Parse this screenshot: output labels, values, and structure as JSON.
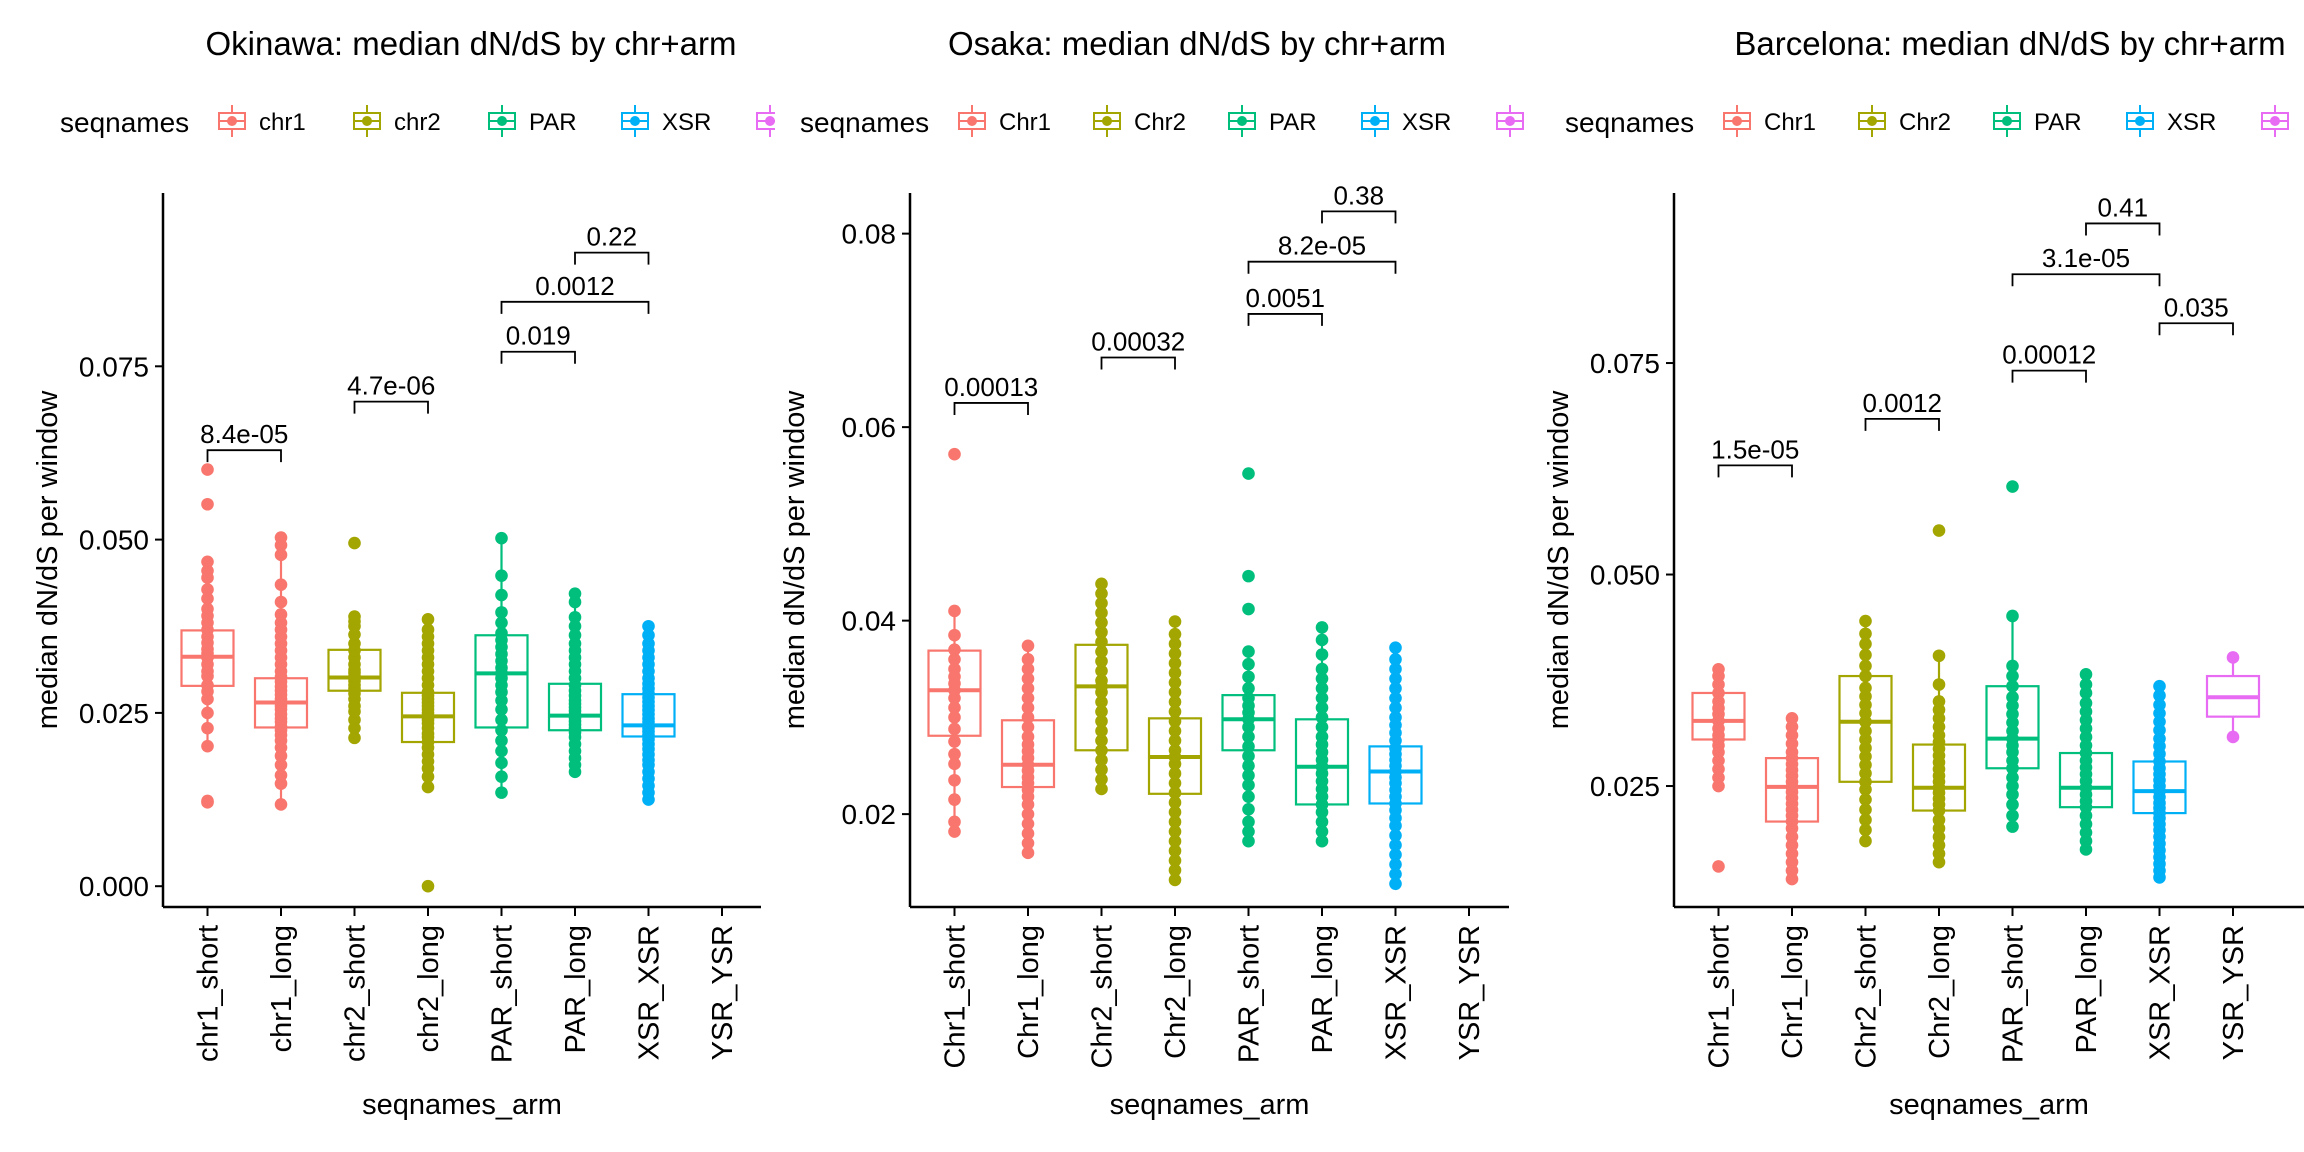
{
  "colors": {
    "chr1": "#F8766D",
    "chr2": "#A3A500",
    "PAR": "#00BF7D",
    "XSR": "#00B0F6",
    "YSR": "#E76BF3"
  },
  "chart_data": [
    {
      "type": "box",
      "title": "Okinawa: median dN/dS by chr+arm",
      "xlabel": "seqnames_arm",
      "ylabel": "median dN/dS per window",
      "legend_title": "seqnames",
      "legend": [
        "chr1",
        "chr2",
        "PAR",
        "XSR"
      ],
      "legend_keys": [
        "chr1",
        "chr2",
        "PAR",
        "XSR",
        "YSR"
      ],
      "yticks": [
        0.0,
        0.025,
        0.05,
        0.075
      ],
      "ytick_labels": [
        "0.000",
        "0.025",
        "0.050",
        "0.075"
      ],
      "ylim": [
        -0.003,
        0.1
      ],
      "categories": [
        "chr1_short",
        "chr1_long",
        "chr2_short",
        "chr2_long",
        "PAR_short",
        "PAR_long",
        "XSR_XSR",
        "YSR_YSR"
      ],
      "boxes": [
        {
          "group": "chr1",
          "q1": 0.0289,
          "median": 0.0331,
          "q3": 0.0369,
          "wlo": 0.0202,
          "whi": 0.0468,
          "points": [
            0.0121,
            0.0123,
            0.0202,
            0.0228,
            0.025,
            0.027,
            0.0281,
            0.029,
            0.0303,
            0.031,
            0.032,
            0.033,
            0.0336,
            0.0342,
            0.0351,
            0.036,
            0.037,
            0.038,
            0.039,
            0.04,
            0.0415,
            0.0428,
            0.0445,
            0.0455,
            0.0468,
            0.0551,
            0.0601
          ]
        },
        {
          "group": "chr1",
          "q1": 0.0229,
          "median": 0.0265,
          "q3": 0.03,
          "wlo": 0.0123,
          "whi": 0.0501,
          "points": [
            0.0118,
            0.0148,
            0.016,
            0.0175,
            0.0188,
            0.02,
            0.021,
            0.0218,
            0.0225,
            0.023,
            0.0237,
            0.0242,
            0.0248,
            0.0255,
            0.026,
            0.0265,
            0.027,
            0.0276,
            0.0282,
            0.0288,
            0.0295,
            0.0302,
            0.031,
            0.032,
            0.033,
            0.034,
            0.035,
            0.036,
            0.037,
            0.038,
            0.0392,
            0.041,
            0.0435,
            0.0478,
            0.0492,
            0.0503
          ]
        },
        {
          "group": "chr2",
          "q1": 0.0282,
          "median": 0.0301,
          "q3": 0.0341,
          "wlo": 0.0215,
          "whi": 0.0389,
          "points": [
            0.0214,
            0.0228,
            0.024,
            0.0252,
            0.026,
            0.027,
            0.0278,
            0.0285,
            0.029,
            0.0296,
            0.03,
            0.0303,
            0.0308,
            0.0312,
            0.032,
            0.033,
            0.034,
            0.035,
            0.0363,
            0.0375,
            0.0382,
            0.0389,
            0.0495
          ]
        },
        {
          "group": "chr2",
          "q1": 0.0208,
          "median": 0.0245,
          "q3": 0.0279,
          "wlo": 0.0143,
          "whi": 0.0385,
          "points": [
            0.0,
            0.0143,
            0.0158,
            0.017,
            0.018,
            0.019,
            0.02,
            0.0208,
            0.0215,
            0.022,
            0.0228,
            0.0235,
            0.024,
            0.0245,
            0.025,
            0.0255,
            0.026,
            0.0265,
            0.027,
            0.0275,
            0.028,
            0.029,
            0.03,
            0.031,
            0.032,
            0.033,
            0.034,
            0.035,
            0.036,
            0.037,
            0.0385
          ]
        },
        {
          "group": "PAR",
          "q1": 0.0229,
          "median": 0.0307,
          "q3": 0.0362,
          "wlo": 0.0135,
          "whi": 0.0502,
          "points": [
            0.0135,
            0.0158,
            0.0178,
            0.0195,
            0.021,
            0.0225,
            0.024,
            0.0255,
            0.0268,
            0.028,
            0.029,
            0.03,
            0.0307,
            0.0315,
            0.0325,
            0.0335,
            0.0345,
            0.0355,
            0.0365,
            0.038,
            0.0395,
            0.042,
            0.0448,
            0.0502
          ]
        },
        {
          "group": "PAR",
          "q1": 0.0225,
          "median": 0.0246,
          "q3": 0.0292,
          "wlo": 0.0165,
          "whi": 0.0422,
          "points": [
            0.0165,
            0.0175,
            0.0185,
            0.0195,
            0.0205,
            0.0215,
            0.0222,
            0.0228,
            0.0233,
            0.0238,
            0.0243,
            0.0248,
            0.0253,
            0.0258,
            0.0263,
            0.0268,
            0.0275,
            0.0282,
            0.029,
            0.03,
            0.031,
            0.032,
            0.033,
            0.034,
            0.035,
            0.0362,
            0.0375,
            0.0388,
            0.041,
            0.0422
          ]
        },
        {
          "group": "XSR",
          "q1": 0.0216,
          "median": 0.0232,
          "q3": 0.0277,
          "wlo": 0.0125,
          "whi": 0.0375,
          "points": [
            0.0125,
            0.0135,
            0.0145,
            0.0155,
            0.0165,
            0.0175,
            0.0182,
            0.019,
            0.0198,
            0.0205,
            0.0212,
            0.0218,
            0.0223,
            0.0228,
            0.0232,
            0.0237,
            0.0242,
            0.0248,
            0.0254,
            0.026,
            0.0266,
            0.0272,
            0.0278,
            0.0285,
            0.0292,
            0.03,
            0.031,
            0.032,
            0.033,
            0.034,
            0.035,
            0.0362,
            0.0375
          ]
        },
        null
      ],
      "brackets": [
        {
          "from": 0,
          "to": 1,
          "y": 0.0629,
          "label": "8.4e-05"
        },
        {
          "from": 2,
          "to": 3,
          "y": 0.0699,
          "label": "4.7e-06"
        },
        {
          "from": 4,
          "to": 5,
          "y": 0.0771,
          "label": "0.019"
        },
        {
          "from": 4,
          "to": 6,
          "y": 0.0843,
          "label": "0.0012"
        },
        {
          "from": 5,
          "to": 6,
          "y": 0.0914,
          "label": "0.22"
        }
      ]
    },
    {
      "type": "box",
      "title": "Osaka: median dN/dS by chr+arm",
      "xlabel": "seqnames_arm",
      "ylabel": "median dN/dS per window",
      "legend_title": "seqnames",
      "legend": [
        "Chr1",
        "Chr2",
        "PAR",
        "XSR"
      ],
      "legend_keys": [
        "chr1",
        "chr2",
        "PAR",
        "XSR",
        "YSR"
      ],
      "yticks": [
        0.02,
        0.04,
        0.06,
        0.08
      ],
      "ytick_labels": [
        "0.02",
        "0.04",
        "0.06",
        "0.08"
      ],
      "ylim": [
        0.0104,
        0.0842
      ],
      "categories": [
        "Chr1_short",
        "Chr1_long",
        "Chr2_short",
        "Chr2_long",
        "PAR_short",
        "PAR_long",
        "XSR_XSR",
        "YSR_YSR"
      ],
      "boxes": [
        {
          "group": "chr1",
          "q1": 0.0281,
          "median": 0.0328,
          "q3": 0.0369,
          "wlo": 0.0182,
          "whi": 0.041,
          "points": [
            0.0182,
            0.0192,
            0.0215,
            0.0235,
            0.0252,
            0.0262,
            0.0275,
            0.0288,
            0.03,
            0.031,
            0.032,
            0.0328,
            0.0335,
            0.0342,
            0.035,
            0.036,
            0.037,
            0.0385,
            0.041,
            0.0572
          ]
        },
        {
          "group": "chr1",
          "q1": 0.0228,
          "median": 0.0251,
          "q3": 0.0297,
          "wlo": 0.016,
          "whi": 0.0374,
          "points": [
            0.016,
            0.017,
            0.018,
            0.019,
            0.02,
            0.021,
            0.0218,
            0.0225,
            0.0232,
            0.0238,
            0.0245,
            0.0251,
            0.0258,
            0.0265,
            0.0272,
            0.028,
            0.029,
            0.03,
            0.031,
            0.032,
            0.033,
            0.034,
            0.035,
            0.036,
            0.0374
          ]
        },
        {
          "group": "chr2",
          "q1": 0.0266,
          "median": 0.0332,
          "q3": 0.0375,
          "wlo": 0.0226,
          "whi": 0.0438,
          "points": [
            0.0226,
            0.0236,
            0.0246,
            0.0256,
            0.0266,
            0.0276,
            0.0286,
            0.0296,
            0.0306,
            0.0316,
            0.0326,
            0.0332,
            0.0338,
            0.0348,
            0.0358,
            0.0368,
            0.0378,
            0.0388,
            0.0398,
            0.0408,
            0.0418,
            0.0428,
            0.0438
          ]
        },
        {
          "group": "chr2",
          "q1": 0.0221,
          "median": 0.0259,
          "q3": 0.0299,
          "wlo": 0.0132,
          "whi": 0.0399,
          "points": [
            0.0132,
            0.0142,
            0.0152,
            0.0162,
            0.0172,
            0.0182,
            0.0192,
            0.0202,
            0.0212,
            0.0222,
            0.0232,
            0.0242,
            0.0252,
            0.0259,
            0.0266,
            0.0276,
            0.0286,
            0.0296,
            0.0306,
            0.0316,
            0.0326,
            0.0336,
            0.0346,
            0.0356,
            0.0366,
            0.0376,
            0.0386,
            0.0399
          ]
        },
        {
          "group": "PAR",
          "q1": 0.0266,
          "median": 0.0298,
          "q3": 0.0323,
          "wlo": 0.0172,
          "whi": 0.0368,
          "points": [
            0.0172,
            0.0182,
            0.0192,
            0.0205,
            0.0218,
            0.023,
            0.024,
            0.025,
            0.026,
            0.027,
            0.028,
            0.029,
            0.0298,
            0.0305,
            0.0312,
            0.032,
            0.033,
            0.0342,
            0.0355,
            0.0368,
            0.0412,
            0.0446,
            0.0552
          ]
        },
        {
          "group": "PAR",
          "q1": 0.021,
          "median": 0.0249,
          "q3": 0.0298,
          "wlo": 0.0172,
          "whi": 0.0393,
          "points": [
            0.0172,
            0.0182,
            0.0192,
            0.0202,
            0.021,
            0.0218,
            0.0226,
            0.0234,
            0.0242,
            0.0249,
            0.0256,
            0.0264,
            0.0272,
            0.028,
            0.029,
            0.03,
            0.031,
            0.032,
            0.033,
            0.034,
            0.035,
            0.0365,
            0.038,
            0.0393
          ]
        },
        {
          "group": "XSR",
          "q1": 0.0211,
          "median": 0.0244,
          "q3": 0.027,
          "wlo": 0.0128,
          "whi": 0.0372,
          "points": [
            0.0128,
            0.0138,
            0.0148,
            0.0158,
            0.0168,
            0.0178,
            0.0188,
            0.0196,
            0.0204,
            0.0211,
            0.0218,
            0.0225,
            0.0232,
            0.0238,
            0.0244,
            0.025,
            0.0256,
            0.0262,
            0.0268,
            0.0276,
            0.0284,
            0.0292,
            0.03,
            0.031,
            0.032,
            0.033,
            0.034,
            0.035,
            0.036,
            0.0372
          ]
        },
        null
      ],
      "brackets": [
        {
          "from": 0,
          "to": 1,
          "y": 0.0625,
          "label": "0.00013"
        },
        {
          "from": 2,
          "to": 3,
          "y": 0.0672,
          "label": "0.00032"
        },
        {
          "from": 4,
          "to": 5,
          "y": 0.0717,
          "label": "0.0051"
        },
        {
          "from": 4,
          "to": 6,
          "y": 0.0771,
          "label": "8.2e-05"
        },
        {
          "from": 5,
          "to": 6,
          "y": 0.0823,
          "label": "0.38"
        }
      ]
    },
    {
      "type": "box",
      "title": "Barcelona: median dN/dS by chr+arm",
      "xlabel": "seqnames_arm",
      "ylabel": "median dN/dS per window",
      "legend_title": "seqnames",
      "legend": [
        "Chr1",
        "Chr2",
        "PAR",
        "XSR"
      ],
      "legend_keys": [
        "chr1",
        "chr2",
        "PAR",
        "XSR",
        "YSR"
      ],
      "yticks": [
        0.025,
        0.05,
        0.075
      ],
      "ytick_labels": [
        "0.025",
        "0.050",
        "0.075"
      ],
      "ylim": [
        0.0107,
        0.0951
      ],
      "categories": [
        "Chr1_short",
        "Chr1_long",
        "Chr2_short",
        "Chr2_long",
        "PAR_short",
        "PAR_long",
        "XSR_XSR",
        "YSR_YSR"
      ],
      "boxes": [
        {
          "group": "chr1",
          "q1": 0.0305,
          "median": 0.0327,
          "q3": 0.036,
          "wlo": 0.025,
          "whi": 0.0388,
          "points": [
            0.0155,
            0.025,
            0.026,
            0.027,
            0.028,
            0.029,
            0.0298,
            0.0305,
            0.031,
            0.0318,
            0.0327,
            0.0335,
            0.0342,
            0.035,
            0.036,
            0.037,
            0.038,
            0.0388
          ]
        },
        {
          "group": "chr1",
          "q1": 0.0208,
          "median": 0.0249,
          "q3": 0.0283,
          "wlo": 0.014,
          "whi": 0.033,
          "points": [
            0.014,
            0.015,
            0.016,
            0.017,
            0.018,
            0.019,
            0.02,
            0.0208,
            0.0215,
            0.0222,
            0.0229,
            0.0236,
            0.0243,
            0.0249,
            0.0255,
            0.0262,
            0.0269,
            0.0276,
            0.0283,
            0.029,
            0.03,
            0.031,
            0.032,
            0.033
          ]
        },
        {
          "group": "chr2",
          "q1": 0.0255,
          "median": 0.0326,
          "q3": 0.038,
          "wlo": 0.0185,
          "whi": 0.0445,
          "points": [
            0.0185,
            0.0198,
            0.021,
            0.0222,
            0.0234,
            0.0246,
            0.0255,
            0.0265,
            0.0275,
            0.0285,
            0.0295,
            0.0305,
            0.0315,
            0.0326,
            0.0336,
            0.0346,
            0.0356,
            0.0366,
            0.038,
            0.0392,
            0.0405,
            0.0418,
            0.043,
            0.0445
          ]
        },
        {
          "group": "chr2",
          "q1": 0.0221,
          "median": 0.0248,
          "q3": 0.0299,
          "wlo": 0.016,
          "whi": 0.0404,
          "points": [
            0.016,
            0.017,
            0.018,
            0.019,
            0.02,
            0.021,
            0.0221,
            0.0228,
            0.0235,
            0.0242,
            0.0248,
            0.0255,
            0.0262,
            0.027,
            0.0278,
            0.0286,
            0.0294,
            0.0302,
            0.031,
            0.032,
            0.033,
            0.034,
            0.035,
            0.037,
            0.0404,
            0.0552
          ]
        },
        {
          "group": "PAR",
          "q1": 0.0271,
          "median": 0.0306,
          "q3": 0.0368,
          "wlo": 0.0202,
          "whi": 0.0451,
          "points": [
            0.0202,
            0.0215,
            0.0228,
            0.024,
            0.025,
            0.026,
            0.0271,
            0.028,
            0.029,
            0.0298,
            0.0306,
            0.0315,
            0.0325,
            0.0335,
            0.0345,
            0.0355,
            0.0368,
            0.038,
            0.0392,
            0.0451,
            0.0604
          ]
        },
        {
          "group": "PAR",
          "q1": 0.0225,
          "median": 0.0248,
          "q3": 0.0289,
          "wlo": 0.0175,
          "whi": 0.0382,
          "points": [
            0.0175,
            0.0185,
            0.0195,
            0.0205,
            0.0215,
            0.0225,
            0.0232,
            0.024,
            0.0248,
            0.0256,
            0.0264,
            0.0272,
            0.028,
            0.0289,
            0.0298,
            0.0308,
            0.0318,
            0.0328,
            0.0338,
            0.0348,
            0.036,
            0.037,
            0.0382
          ]
        },
        {
          "group": "XSR",
          "q1": 0.0218,
          "median": 0.0244,
          "q3": 0.0279,
          "wlo": 0.0142,
          "whi": 0.0368,
          "points": [
            0.0142,
            0.015,
            0.0158,
            0.0166,
            0.0174,
            0.0182,
            0.019,
            0.0198,
            0.0205,
            0.0212,
            0.0218,
            0.0224,
            0.023,
            0.0237,
            0.0244,
            0.025,
            0.0257,
            0.0264,
            0.0271,
            0.0279,
            0.0288,
            0.0297,
            0.0306,
            0.0316,
            0.0326,
            0.0336,
            0.0346,
            0.0357,
            0.0368
          ]
        },
        {
          "group": "YSR",
          "q1": 0.0332,
          "median": 0.0355,
          "q3": 0.038,
          "wlo": 0.0308,
          "whi": 0.0402,
          "points": [
            0.0308,
            0.0402
          ]
        }
      ],
      "brackets": [
        {
          "from": 0,
          "to": 1,
          "y": 0.0629,
          "label": "1.5e-05"
        },
        {
          "from": 2,
          "to": 3,
          "y": 0.0684,
          "label": "0.0012"
        },
        {
          "from": 4,
          "to": 5,
          "y": 0.0741,
          "label": "0.00012"
        },
        {
          "from": 5,
          "to": 6,
          "y": 0.0915,
          "label": "0.41"
        },
        {
          "from": 4,
          "to": 6,
          "y": 0.0855,
          "label": "3.1e-05"
        },
        {
          "from": 6,
          "to": 7,
          "y": 0.0797,
          "label": "0.035"
        }
      ]
    }
  ]
}
